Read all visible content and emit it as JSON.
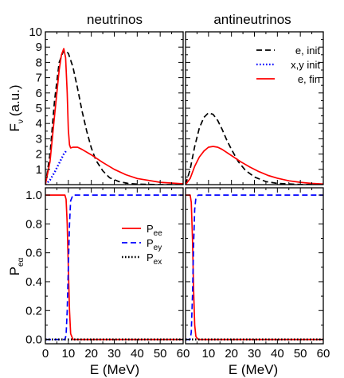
{
  "chart_data": [
    {
      "type": "line",
      "panel": "top-left",
      "title": "neutrinos",
      "ylabel": "F_ν (a.u.)",
      "ylabel_main": "F",
      "ylabel_sub": "ν",
      "ylabel_unit": "(a.u.)",
      "xlim": [
        0,
        60
      ],
      "ylim": [
        0,
        10
      ],
      "yticks": [
        "1",
        "2",
        "3",
        "4",
        "5",
        "6",
        "7",
        "8",
        "9",
        "10"
      ],
      "series": [
        {
          "color": "#000000",
          "dash": "dashed",
          "x": [
            0,
            2,
            4,
            6,
            8,
            10,
            12,
            14,
            16,
            18,
            20,
            22,
            25,
            28,
            32,
            36,
            40,
            50,
            60
          ],
          "y": [
            0,
            2.0,
            5.5,
            8.0,
            8.8,
            8.6,
            7.7,
            6.3,
            4.8,
            3.5,
            2.4,
            1.6,
            0.9,
            0.45,
            0.2,
            0.08,
            0.03,
            0.0,
            0.0
          ]
        },
        {
          "color": "#0000ff",
          "dash": "dotted",
          "x": [
            0,
            2,
            4,
            6,
            8,
            9
          ],
          "y": [
            0,
            0.3,
            0.8,
            1.4,
            2.0,
            2.2
          ]
        },
        {
          "color": "#ff0000",
          "dash": "solid",
          "x": [
            0,
            2,
            4,
            6,
            7,
            8,
            8.8,
            9.5,
            10,
            10.5,
            11,
            12,
            14,
            16,
            20,
            25,
            30,
            35,
            40,
            50,
            60
          ],
          "y": [
            0,
            1.5,
            4.5,
            7.5,
            8.5,
            8.9,
            8.3,
            6.0,
            3.6,
            2.6,
            2.4,
            2.45,
            2.45,
            2.3,
            1.95,
            1.45,
            1.0,
            0.65,
            0.4,
            0.15,
            0.05
          ]
        }
      ]
    },
    {
      "type": "line",
      "panel": "top-right",
      "title": "antineutrinos",
      "xlim": [
        0,
        60
      ],
      "ylim": [
        0,
        10
      ],
      "legend": {
        "placement": "top-right",
        "entries": [
          {
            "label": "e, init",
            "color": "#000000",
            "dash": "dashed"
          },
          {
            "label": "x,y init",
            "color": "#0000ff",
            "dash": "dotted"
          },
          {
            "label": "e, fin",
            "color": "#ff0000",
            "dash": "solid"
          }
        ]
      },
      "series": [
        {
          "color": "#000000",
          "dash": "dashed",
          "x": [
            0,
            2,
            4,
            6,
            8,
            10,
            12,
            14,
            16,
            18,
            20,
            23,
            26,
            30,
            35,
            40,
            50,
            60
          ],
          "y": [
            0,
            1.0,
            2.5,
            3.7,
            4.4,
            4.7,
            4.6,
            4.2,
            3.6,
            2.9,
            2.3,
            1.5,
            0.95,
            0.5,
            0.2,
            0.08,
            0.01,
            0.0
          ]
        },
        {
          "color": "#ff0000",
          "dash": "solid",
          "x": [
            0,
            2,
            4,
            6,
            8,
            10,
            12,
            14,
            16,
            18,
            20,
            24,
            28,
            32,
            36,
            40,
            45,
            50,
            55,
            60
          ],
          "y": [
            0,
            0.4,
            1.2,
            1.8,
            2.2,
            2.45,
            2.5,
            2.45,
            2.3,
            2.1,
            1.9,
            1.5,
            1.15,
            0.85,
            0.6,
            0.42,
            0.25,
            0.15,
            0.08,
            0.04
          ]
        }
      ]
    },
    {
      "type": "line",
      "panel": "bottom-left",
      "ylabel": "P_eα",
      "ylabel_main": "P",
      "ylabel_sub": "eα",
      "xlabel": "E (MeV)",
      "xlim": [
        0,
        60
      ],
      "ylim": [
        -0.03,
        1.05
      ],
      "xticks": [
        "0",
        "10",
        "20",
        "30",
        "40",
        "50",
        "60"
      ],
      "yticks": [
        "0.0",
        "0.2",
        "0.4",
        "0.6",
        "0.8",
        "1.0"
      ],
      "legend": {
        "placement": "center-right",
        "entries": [
          {
            "main": "P",
            "sub": "ee",
            "color": "#ff0000",
            "dash": "solid"
          },
          {
            "main": "P",
            "sub": "ey",
            "color": "#0000ff",
            "dash": "dashed"
          },
          {
            "main": "P",
            "sub": "ex",
            "color": "#000000",
            "dash": "dotted"
          }
        ]
      },
      "series": [
        {
          "color": "#ff0000",
          "dash": "solid",
          "x": [
            0,
            8.5,
            9,
            9.5,
            10,
            10.5,
            11,
            12,
            60
          ],
          "y": [
            1.0,
            1.0,
            0.97,
            0.8,
            0.5,
            0.2,
            0.04,
            0.0,
            0.0
          ]
        },
        {
          "color": "#0000ff",
          "dash": "dashed",
          "x": [
            0,
            8.5,
            9,
            9.5,
            10,
            10.5,
            11,
            12,
            60
          ],
          "y": [
            0.0,
            0.0,
            0.03,
            0.2,
            0.5,
            0.8,
            0.96,
            1.0,
            1.0
          ]
        },
        {
          "color": "#000000",
          "dash": "dotted",
          "x": [
            0,
            60
          ],
          "y": [
            0.0,
            0.0
          ]
        }
      ]
    },
    {
      "type": "line",
      "panel": "bottom-right",
      "xlabel": "E (MeV)",
      "xlim": [
        0,
        60
      ],
      "ylim": [
        -0.03,
        1.05
      ],
      "xticks": [
        "10",
        "20",
        "30",
        "40",
        "50",
        "60"
      ],
      "series": [
        {
          "color": "#ff0000",
          "dash": "solid",
          "x": [
            0,
            2.0,
            2.5,
            3.0,
            3.5,
            4.0,
            4.5,
            5.5,
            60
          ],
          "y": [
            1.0,
            1.0,
            0.95,
            0.7,
            0.35,
            0.1,
            0.02,
            0.0,
            0.0
          ]
        },
        {
          "color": "#0000ff",
          "dash": "dashed",
          "x": [
            0,
            2.0,
            2.5,
            3.0,
            3.5,
            4.0,
            4.5,
            5.5,
            60
          ],
          "y": [
            0.0,
            0.0,
            0.05,
            0.3,
            0.65,
            0.9,
            0.98,
            1.0,
            1.0
          ]
        },
        {
          "color": "#000000",
          "dash": "dotted",
          "x": [
            0,
            60
          ],
          "y": [
            0.0,
            0.0
          ]
        }
      ]
    }
  ]
}
